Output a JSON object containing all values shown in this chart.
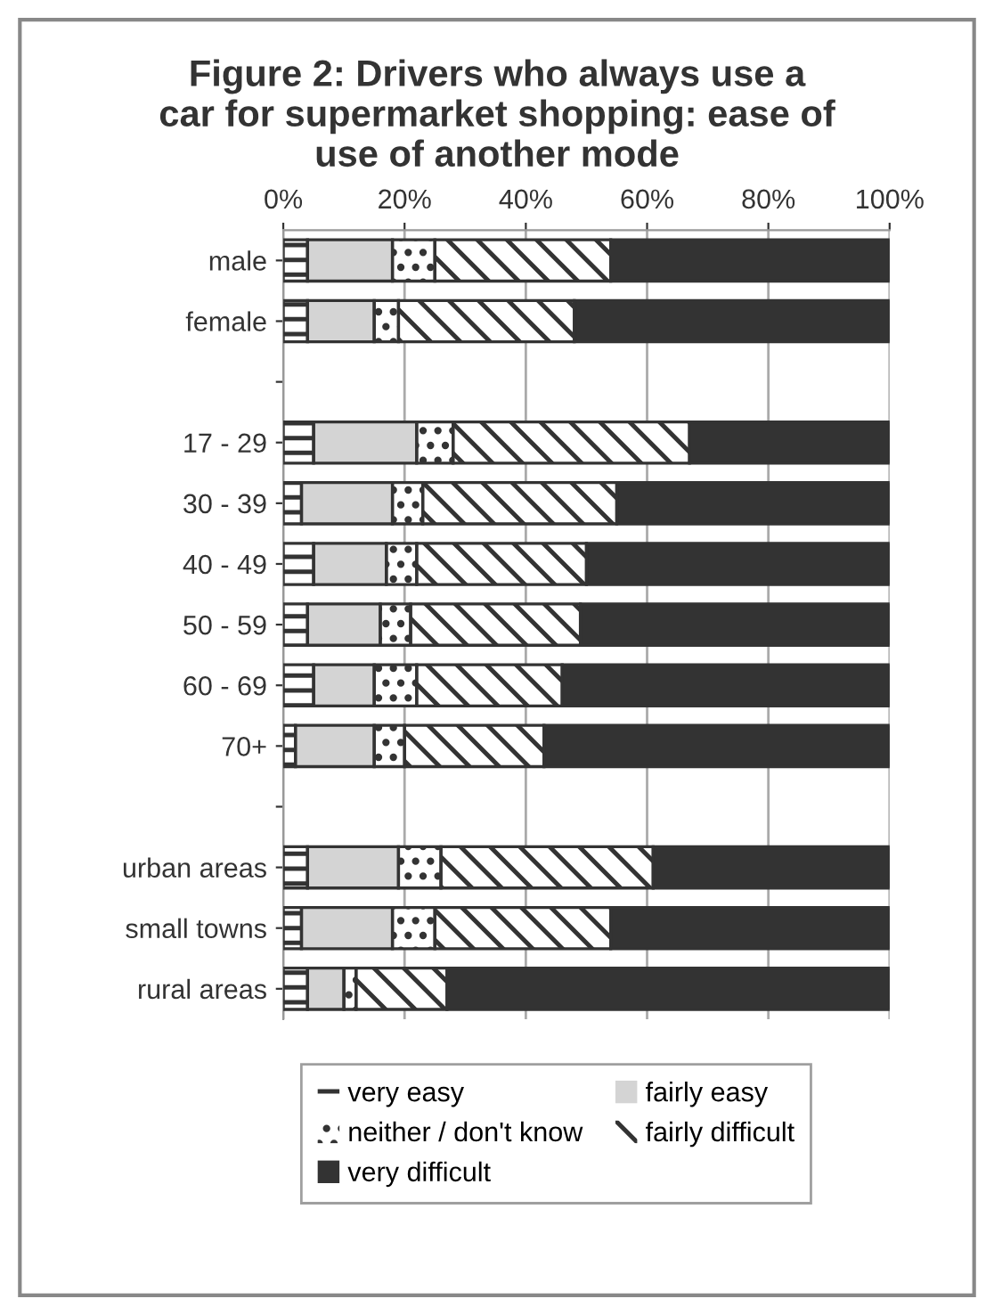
{
  "chart_data": {
    "type": "bar",
    "orientation": "horizontal",
    "stacked": true,
    "title": "Figure 2: Drivers who always use a car for supermarket shopping: ease of use of another mode",
    "categories": [
      "male",
      "female",
      null,
      "17 - 29",
      "30 - 39",
      "40 - 49",
      "50 - 59",
      "60 - 69",
      "70+",
      null,
      "urban areas",
      "small towns",
      "rural areas"
    ],
    "series": [
      {
        "name": "very easy",
        "color": "#ffffff",
        "values": [
          4,
          4,
          null,
          5,
          3,
          5,
          4,
          5,
          2,
          null,
          4,
          3,
          4
        ]
      },
      {
        "name": "fairly easy",
        "color": "#d4d4d4",
        "values": [
          14,
          11,
          null,
          17,
          15,
          12,
          12,
          10,
          13,
          null,
          15,
          15,
          6
        ]
      },
      {
        "name": "neither / don't know",
        "color": "#ffffff",
        "values": [
          7,
          4,
          null,
          6,
          5,
          5,
          5,
          7,
          5,
          null,
          7,
          7,
          2
        ]
      },
      {
        "name": "fairly difficult",
        "color": "#ffffff",
        "values": [
          29,
          29,
          null,
          39,
          32,
          28,
          28,
          24,
          23,
          null,
          35,
          29,
          15
        ]
      },
      {
        "name": "very difficult",
        "color": "#333333",
        "values": [
          46,
          52,
          null,
          33,
          45,
          50,
          51,
          54,
          57,
          null,
          39,
          46,
          73
        ]
      }
    ],
    "xlim": [
      0,
      100
    ],
    "xticks": [
      {
        "value": 0,
        "label": "0%"
      },
      {
        "value": 20,
        "label": "20%"
      },
      {
        "value": 40,
        "label": "40%"
      },
      {
        "value": 60,
        "label": "60%"
      },
      {
        "value": 80,
        "label": "80%"
      },
      {
        "value": 100,
        "label": "100%"
      }
    ],
    "grid": "x",
    "legend": "bottom"
  }
}
